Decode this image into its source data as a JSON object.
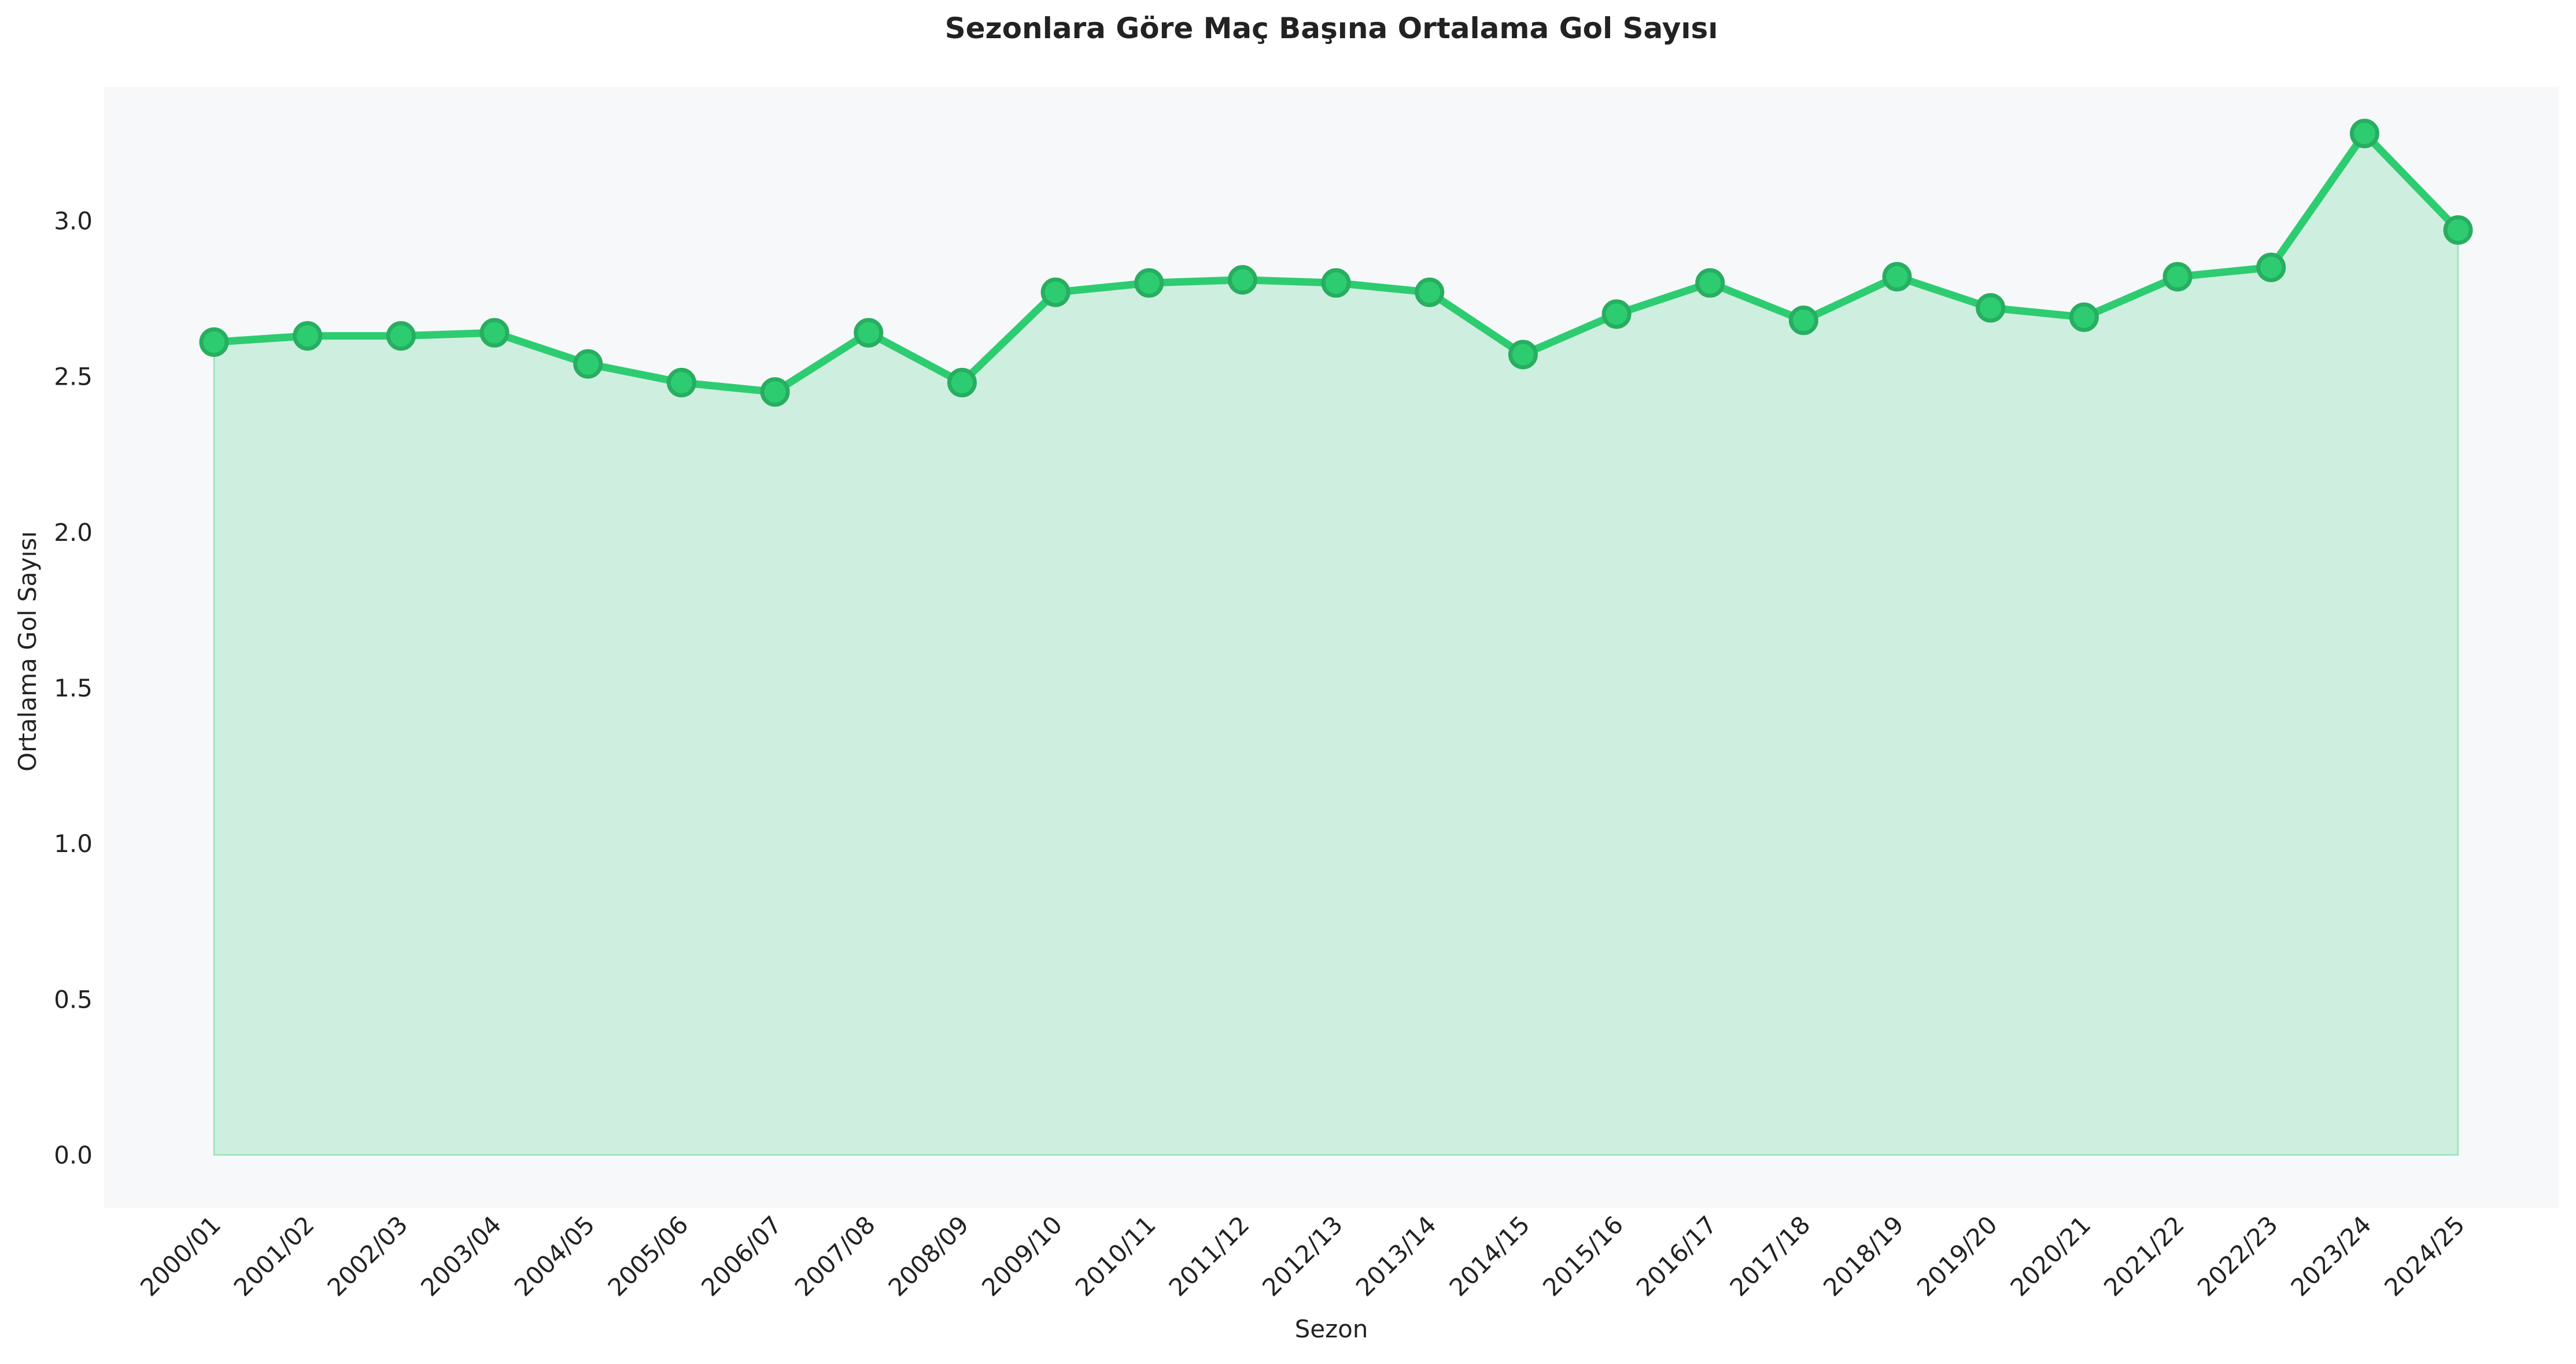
{
  "chart_data": {
    "type": "area",
    "title": "Sezonlara Göre Maç Başına Ortalama Gol Sayısı",
    "xlabel": "Sezon",
    "ylabel": "Ortalama Gol Sayısı",
    "categories": [
      "2000/01",
      "2001/02",
      "2002/03",
      "2003/04",
      "2004/05",
      "2005/06",
      "2006/07",
      "2007/08",
      "2008/09",
      "2009/10",
      "2010/11",
      "2011/12",
      "2012/13",
      "2013/14",
      "2014/15",
      "2015/16",
      "2016/17",
      "2017/18",
      "2018/19",
      "2019/20",
      "2020/21",
      "2021/22",
      "2022/23",
      "2023/24",
      "2024/25"
    ],
    "values": [
      2.61,
      2.63,
      2.63,
      2.64,
      2.54,
      2.48,
      2.45,
      2.64,
      2.48,
      2.77,
      2.8,
      2.81,
      2.8,
      2.77,
      2.57,
      2.7,
      2.8,
      2.68,
      2.82,
      2.72,
      2.69,
      2.82,
      2.85,
      3.28,
      2.97
    ],
    "yticks": [
      "0.0",
      "0.5",
      "1.0",
      "1.5",
      "2.0",
      "2.5",
      "3.0"
    ],
    "ylim": [
      -0.17,
      3.43
    ],
    "grid": false,
    "colors": {
      "line": "#2ecc71",
      "marker_fill": "#2ecc71",
      "marker_edge": "#27ae60",
      "area_fill": "#2ecc71",
      "plot_background": "#f7f8fa"
    }
  }
}
